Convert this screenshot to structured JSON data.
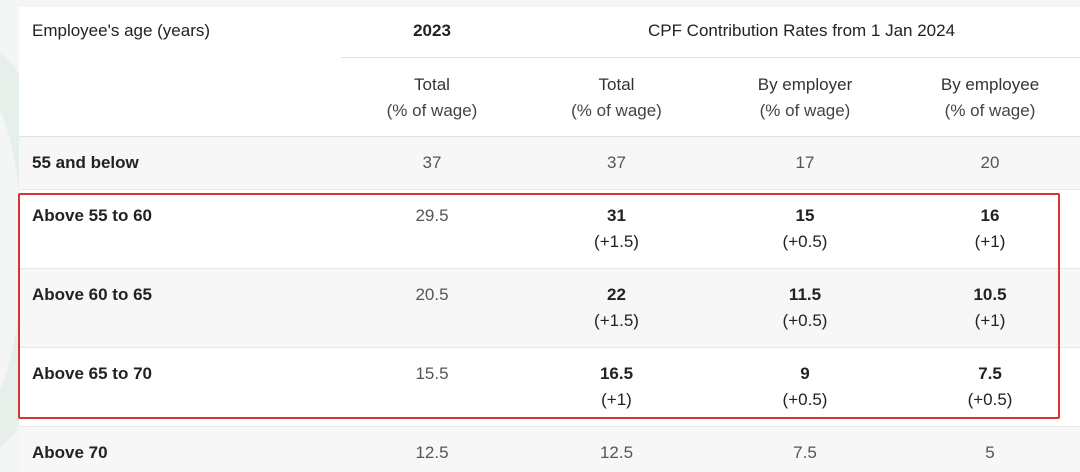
{
  "table": {
    "header": {
      "age_label": "Employee's age (years)",
      "year_2023": "2023",
      "rates_label": "CPF Contribution Rates from 1 Jan 2024",
      "col_total_2023": {
        "main": "Total",
        "sub": "(% of wage)"
      },
      "col_total_2024": {
        "main": "Total",
        "sub": "(% of wage)"
      },
      "col_employer": {
        "main": "By employer",
        "sub": "(% of wage)"
      },
      "col_employee": {
        "main": "By employee",
        "sub": "(% of wage)"
      }
    },
    "rows": [
      {
        "age": "55 and below",
        "rate_2023": "37",
        "total": "37",
        "total_delta": "",
        "employer": "17",
        "employer_delta": "",
        "employee": "20",
        "employee_delta": ""
      },
      {
        "age": "Above 55 to 60",
        "rate_2023": "29.5",
        "total": "31",
        "total_delta": "(+1.5)",
        "employer": "15",
        "employer_delta": "(+0.5)",
        "employee": "16",
        "employee_delta": "(+1)"
      },
      {
        "age": "Above 60 to 65",
        "rate_2023": "20.5",
        "total": "22",
        "total_delta": "(+1.5)",
        "employer": "11.5",
        "employer_delta": "(+0.5)",
        "employee": "10.5",
        "employee_delta": "(+1)"
      },
      {
        "age": "Above 65 to 70",
        "rate_2023": "15.5",
        "total": "16.5",
        "total_delta": "(+1)",
        "employer": "9",
        "employer_delta": "(+0.5)",
        "employee": "7.5",
        "employee_delta": "(+0.5)"
      },
      {
        "age": "Above 70",
        "rate_2023": "12.5",
        "total": "12.5",
        "total_delta": "",
        "employer": "7.5",
        "employer_delta": "",
        "employee": "5",
        "employee_delta": ""
      }
    ]
  },
  "colors": {
    "highlight_border": "#d9352f",
    "row_shade": "#f7f7f7"
  }
}
